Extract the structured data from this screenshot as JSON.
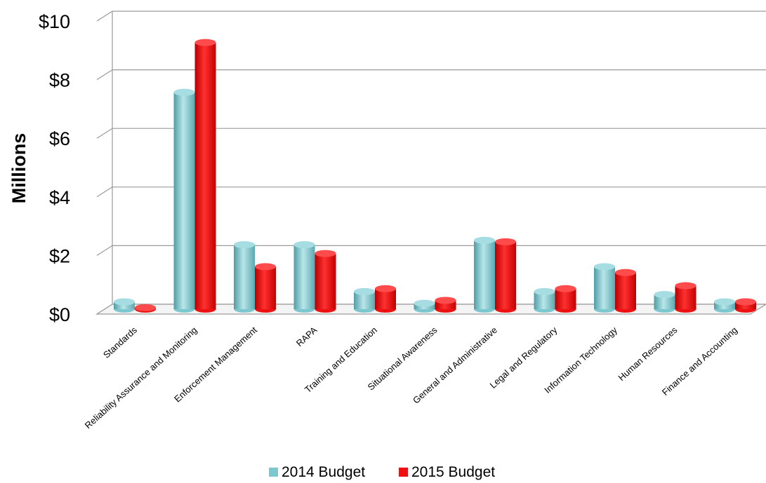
{
  "chart_data": {
    "type": "bar",
    "ylabel": "Millions",
    "xlabel": "",
    "ylim": [
      0,
      10
    ],
    "yticks": [
      "$0",
      "$2",
      "$4",
      "$6",
      "$8",
      "$10"
    ],
    "grid": true,
    "legend_position": "bottom",
    "categories": [
      "Standards",
      "Reliability Assurance and Monitoring",
      "Enforcement Management",
      "RAPA",
      "Training and Education",
      "Situational Awareness",
      "General and Administrative",
      "Legal and Regulatory",
      "Information Technology",
      "Human Resources",
      "Finance and Accounting"
    ],
    "series": [
      {
        "name": "2014 Budget",
        "color": "#7cc8ce",
        "values": [
          0.25,
          7.4,
          2.2,
          2.2,
          0.6,
          0.2,
          2.35,
          0.6,
          1.45,
          0.5,
          0.25
        ]
      },
      {
        "name": "2015 Budget",
        "color": "#ee1111",
        "values": [
          0.05,
          9.1,
          1.45,
          1.9,
          0.7,
          0.3,
          2.3,
          0.7,
          1.25,
          0.8,
          0.25
        ]
      }
    ]
  }
}
